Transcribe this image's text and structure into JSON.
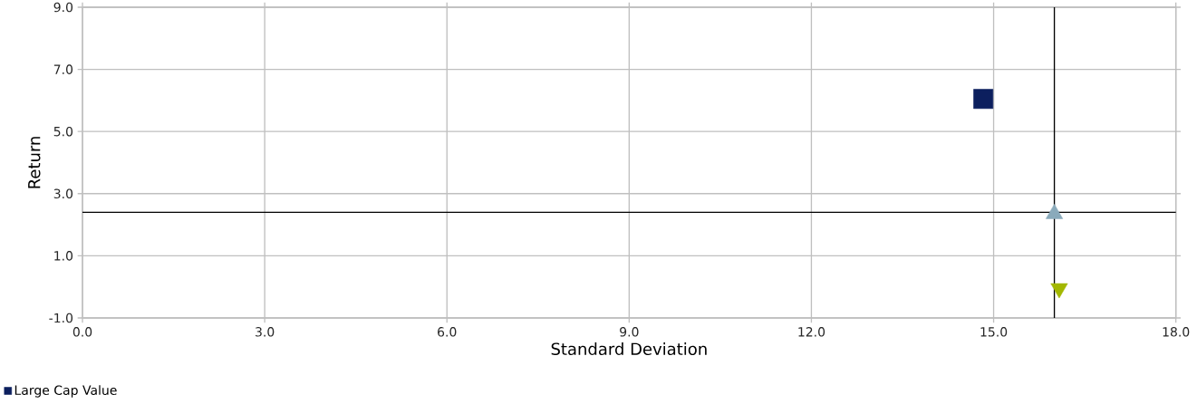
{
  "chart_data": {
    "type": "scatter",
    "xlabel": "Standard Deviation",
    "ylabel": "Return",
    "series": [
      {
        "name": "Large Cap Value",
        "color": "#0c1f5e",
        "marker": "square",
        "x": [
          14.83
        ],
        "values": [
          6.05
        ]
      },
      {
        "color": "#8aaabb",
        "marker": "triangle",
        "x": [
          16.0
        ],
        "values": [
          2.35
        ]
      },
      {
        "color": "#a3b800",
        "marker": "triangle-down",
        "x": [
          16.08
        ],
        "values": [
          -0.05
        ]
      }
    ],
    "xlim": [
      0,
      18
    ],
    "ylim": [
      -1,
      9
    ],
    "xticks": [
      {
        "value": 0,
        "label": "0.0"
      },
      {
        "value": 3,
        "label": "3.0"
      },
      {
        "value": 6,
        "label": "6.0"
      },
      {
        "value": 9,
        "label": "9.0"
      },
      {
        "value": 12,
        "label": "12.0"
      },
      {
        "value": 15,
        "label": "15.0"
      },
      {
        "value": 18,
        "label": "18.0"
      }
    ],
    "yticks": [
      {
        "value": -1,
        "label": "-1.0"
      },
      {
        "value": 1,
        "label": "1.0"
      },
      {
        "value": 3,
        "label": "3.0"
      },
      {
        "value": 5,
        "label": "5.0"
      },
      {
        "value": 7,
        "label": "7.0"
      },
      {
        "value": 9,
        "label": "9.0"
      }
    ],
    "ref_lines": [
      {
        "axis": "x",
        "value": 16.0,
        "color": "#000000"
      },
      {
        "axis": "y",
        "value": 2.4,
        "color": "#000000"
      }
    ],
    "grid": true,
    "legend": "bottom"
  }
}
